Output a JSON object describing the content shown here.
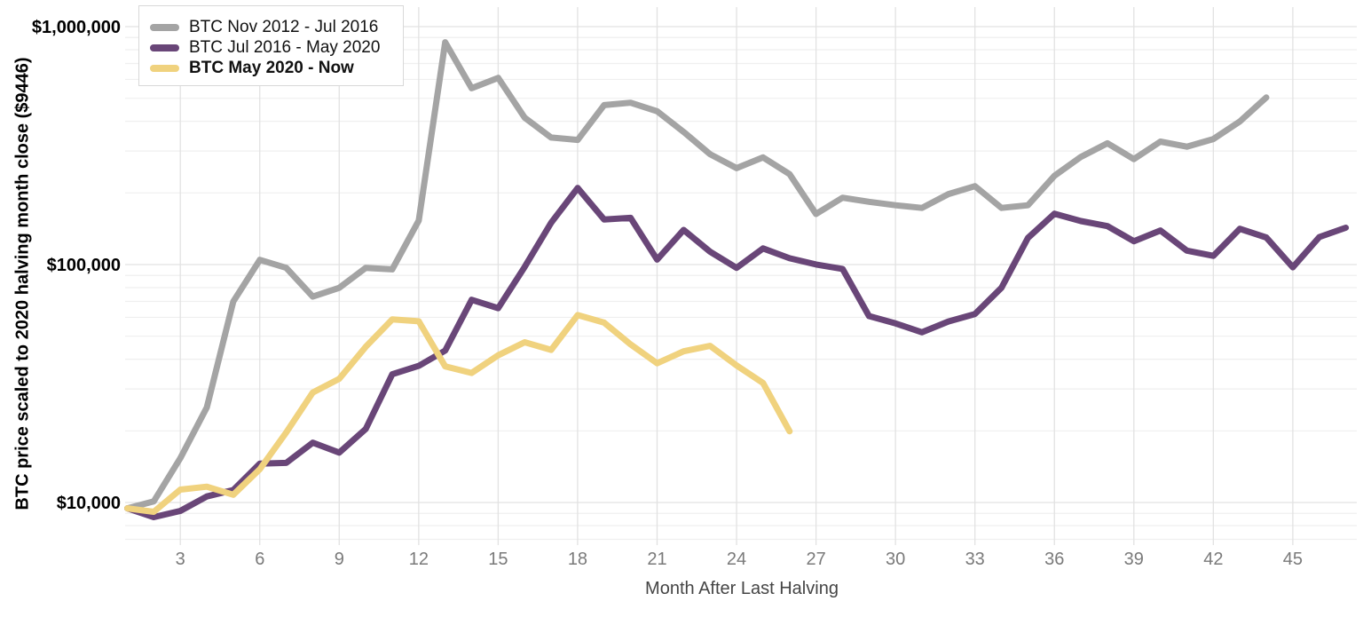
{
  "chart_data": {
    "type": "line",
    "title": "",
    "xlabel": "Month After Last Halving",
    "ylabel": "BTC price scaled to 2020 halving month close ($9446)",
    "grid": "major and log minor gridlines, light gray on white",
    "legend_position": "top-left",
    "x_axis": {
      "label": "Month After Last Halving",
      "start_month": 1,
      "range": [
        1,
        47
      ],
      "major_ticks": [
        3,
        6,
        9,
        12,
        15,
        18,
        21,
        24,
        27,
        30,
        33,
        36,
        39,
        42,
        45
      ]
    },
    "y_axis": {
      "scale": "log10",
      "range": [
        7000,
        1000000
      ],
      "ticks": [
        {
          "value": 10000,
          "label": "$10,000"
        },
        {
          "value": 100000,
          "label": "$100,000"
        },
        {
          "value": 1000000,
          "label": "$1,000,000"
        }
      ]
    },
    "series": [
      {
        "name": "BTC Nov 2012 - Jul 2016",
        "color": "#a4a4a4",
        "bold": false,
        "start_month": 1,
        "values": [
          9446,
          10110,
          15350,
          25100,
          69960,
          104700,
          96860,
          73320,
          79870,
          96870,
          95440,
          153100,
          860000,
          551000,
          609000,
          414000,
          342000,
          334000,
          468000,
          479000,
          441000,
          361000,
          291000,
          254200,
          282000,
          239900,
          163200,
          191000,
          183500,
          177500,
          173000,
          197800,
          213600,
          173000,
          177500,
          236200,
          283500,
          323400,
          277500,
          328700,
          312900,
          336900,
          399400,
          503900
        ]
      },
      {
        "name": "BTC Jul 2016 - May 2020",
        "color": "#694678",
        "bold": false,
        "start_month": 1,
        "values": [
          9446,
          8680,
          9220,
          10600,
          11280,
          14570,
          14670,
          17840,
          16200,
          20380,
          34570,
          37510,
          43480,
          71120,
          65590,
          97800,
          149900,
          209900,
          154600,
          157200,
          104900,
          139800,
          113300,
          96830,
          116900,
          106300,
          100100,
          95880,
          60730,
          56580,
          51920,
          57670,
          61950,
          79910,
          129400,
          163600,
          152400,
          145100,
          125300,
          139100,
          114400,
          108800,
          141400,
          130000,
          97340,
          130500,
          142800
        ]
      },
      {
        "name": "BTC May 2020 - Now",
        "color": "#f0d27e",
        "bold": true,
        "start_month": 1,
        "values": [
          9446,
          9135,
          11330,
          11650,
          10780,
          13800,
          19700,
          28990,
          33110,
          45140,
          58800,
          57750,
          37330,
          35040,
          41550,
          47150,
          43790,
          61320,
          57010,
          46210,
          38480,
          43190,
          45540,
          37650,
          31790,
          19920
        ]
      }
    ]
  },
  "style": {
    "major_grid_color": "#e2e2e2",
    "minor_grid_color": "#efefef",
    "x_tick_color": "#7a7a7a",
    "y_tick_color": "#000000",
    "line_width": 7
  }
}
